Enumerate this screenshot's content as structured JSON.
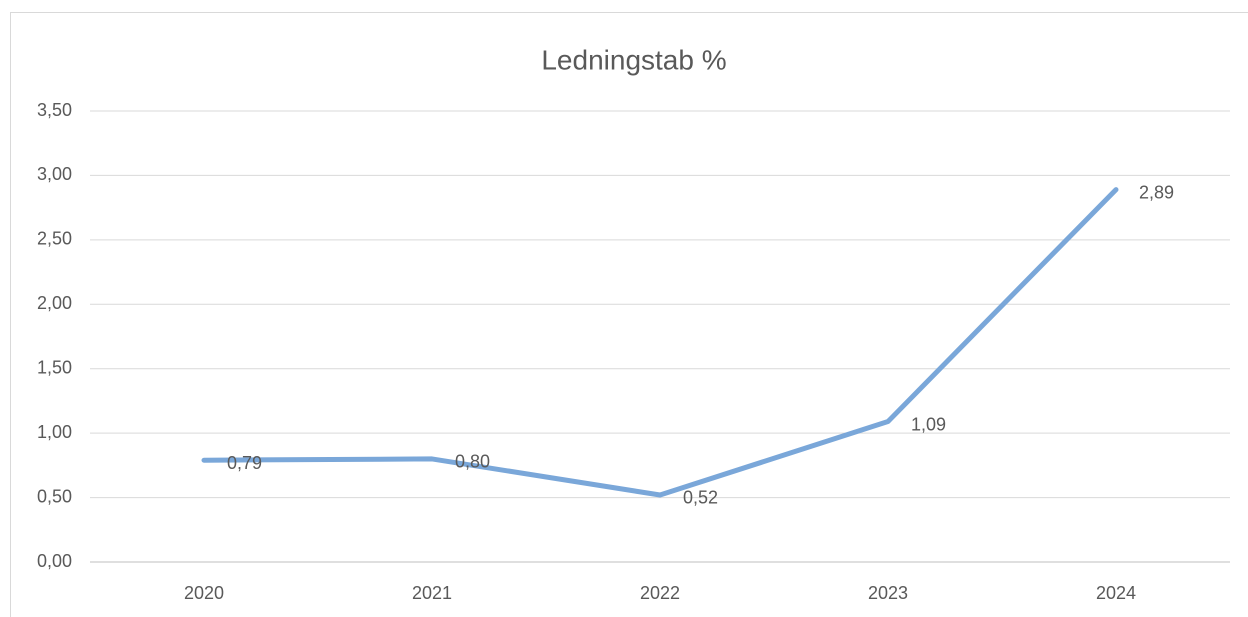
{
  "chart_data": {
    "type": "line",
    "title": "Ledningstab %",
    "categories": [
      "2020",
      "2021",
      "2022",
      "2023",
      "2024"
    ],
    "series": [
      {
        "name": "Ledningstab %",
        "color": "#7aa7d9",
        "values": [
          0.79,
          0.8,
          0.52,
          1.09,
          2.89
        ],
        "value_labels": [
          "0,79",
          "0,80",
          "0,52",
          "1,09",
          "2,89"
        ]
      }
    ],
    "ylim": [
      0,
      3.5
    ],
    "yticks": [
      {
        "value": 0,
        "label": "0,00"
      },
      {
        "value": 0.5,
        "label": "0,50"
      },
      {
        "value": 1,
        "label": "1,00"
      },
      {
        "value": 1.5,
        "label": "1,50"
      },
      {
        "value": 2,
        "label": "2,00"
      },
      {
        "value": 2.5,
        "label": "2,50"
      },
      {
        "value": 3,
        "label": "3,00"
      },
      {
        "value": 3.5,
        "label": "3,50"
      }
    ],
    "grid": true
  }
}
